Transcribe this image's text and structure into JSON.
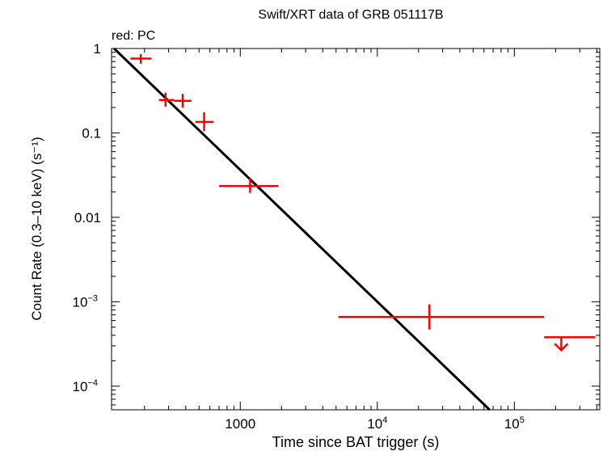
{
  "chart_data": {
    "type": "scatter",
    "title": "Swift/XRT data of GRB 051117B",
    "subtitle": "red: PC",
    "xlabel": "Time since BAT trigger (s)",
    "ylabel": "Count Rate (0.3–10 keV) (s⁻¹)",
    "xscale": "log",
    "yscale": "log",
    "xlim": [
      115,
      420000
    ],
    "ylim": [
      5.25e-05,
      1.0
    ],
    "grid": false,
    "x_ticks": [
      {
        "value": 1000,
        "label": "1000"
      },
      {
        "value": 10000,
        "label": "10",
        "exp": "4"
      },
      {
        "value": 100000,
        "label": "10",
        "exp": "5"
      }
    ],
    "y_ticks": [
      {
        "value": 1,
        "label": "1"
      },
      {
        "value": 0.1,
        "label": "0.1"
      },
      {
        "value": 0.01,
        "label": "0.01"
      },
      {
        "value": 0.001,
        "label": "10",
        "exp": "−3"
      },
      {
        "value": 0.0001,
        "label": "10",
        "exp": "−4"
      }
    ],
    "series": [
      {
        "name": "PC",
        "color": "#ff0000",
        "points": [
          {
            "x": 188,
            "xlo": 158,
            "xhi": 225,
            "y": 0.76,
            "ylo": 0.66,
            "yhi": 0.86
          },
          {
            "x": 285,
            "xlo": 255,
            "xhi": 330,
            "y": 0.245,
            "ylo": 0.205,
            "yhi": 0.3
          },
          {
            "x": 380,
            "xlo": 330,
            "xhi": 440,
            "y": 0.24,
            "ylo": 0.2,
            "yhi": 0.29
          },
          {
            "x": 545,
            "xlo": 470,
            "xhi": 640,
            "y": 0.135,
            "ylo": 0.105,
            "yhi": 0.175
          },
          {
            "x": 1180,
            "xlo": 700,
            "xhi": 1900,
            "y": 0.0235,
            "ylo": 0.0195,
            "yhi": 0.029
          },
          {
            "x": 24000,
            "xlo": 5200,
            "xhi": 165000,
            "y": 0.00066,
            "ylo": 0.00047,
            "yhi": 0.00093
          }
        ],
        "upper_limits": [
          {
            "x": 220000,
            "xlo": 165000,
            "xhi": 390000,
            "y": 0.00038
          }
        ]
      }
    ],
    "model": {
      "type": "power-law",
      "color": "#000000",
      "x_start": 120,
      "y_start": 1.0,
      "x_end": 66000,
      "y_end": 5.25e-05
    }
  }
}
